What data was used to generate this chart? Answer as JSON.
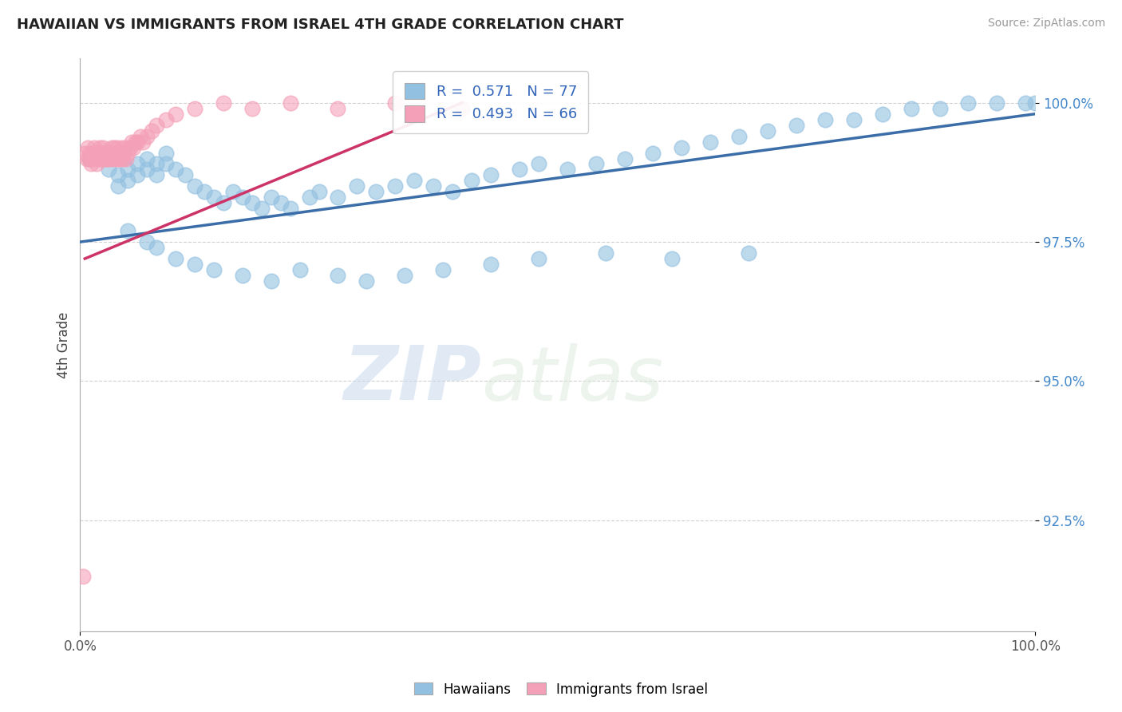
{
  "title": "HAWAIIAN VS IMMIGRANTS FROM ISRAEL 4TH GRADE CORRELATION CHART",
  "source": "Source: ZipAtlas.com",
  "ylabel": "4th Grade",
  "x_min": 0.0,
  "x_max": 1.0,
  "y_min": 0.905,
  "y_max": 1.008,
  "y_ticks": [
    0.925,
    0.95,
    0.975,
    1.0
  ],
  "y_tick_labels": [
    "92.5%",
    "95.0%",
    "97.5%",
    "100.0%"
  ],
  "blue_color": "#92C0E0",
  "pink_color": "#F4A0B8",
  "blue_line_color": "#3B6EA8",
  "pink_line_color": "#CC3366",
  "legend_R_blue": "0.571",
  "legend_N_blue": "77",
  "legend_R_pink": "0.493",
  "legend_N_pink": "66",
  "watermark_zip": "ZIP",
  "watermark_atlas": "atlas",
  "blue_scatter_x": [
    0.01,
    0.02,
    0.03,
    0.04,
    0.04,
    0.05,
    0.05,
    0.06,
    0.06,
    0.07,
    0.07,
    0.08,
    0.08,
    0.09,
    0.09,
    0.1,
    0.11,
    0.12,
    0.13,
    0.14,
    0.15,
    0.16,
    0.17,
    0.18,
    0.19,
    0.2,
    0.21,
    0.22,
    0.24,
    0.25,
    0.27,
    0.29,
    0.31,
    0.33,
    0.35,
    0.37,
    0.39,
    0.41,
    0.43,
    0.46,
    0.48,
    0.51,
    0.54,
    0.57,
    0.6,
    0.63,
    0.66,
    0.69,
    0.72,
    0.75,
    0.78,
    0.81,
    0.84,
    0.87,
    0.9,
    0.93,
    0.96,
    0.99,
    1.0,
    0.05,
    0.07,
    0.08,
    0.1,
    0.12,
    0.14,
    0.17,
    0.2,
    0.23,
    0.27,
    0.3,
    0.34,
    0.38,
    0.43,
    0.48,
    0.55,
    0.62,
    0.7
  ],
  "blue_scatter_y": [
    0.99,
    0.991,
    0.988,
    0.987,
    0.985,
    0.986,
    0.988,
    0.989,
    0.987,
    0.99,
    0.988,
    0.989,
    0.987,
    0.991,
    0.989,
    0.988,
    0.987,
    0.985,
    0.984,
    0.983,
    0.982,
    0.984,
    0.983,
    0.982,
    0.981,
    0.983,
    0.982,
    0.981,
    0.983,
    0.984,
    0.983,
    0.985,
    0.984,
    0.985,
    0.986,
    0.985,
    0.984,
    0.986,
    0.987,
    0.988,
    0.989,
    0.988,
    0.989,
    0.99,
    0.991,
    0.992,
    0.993,
    0.994,
    0.995,
    0.996,
    0.997,
    0.997,
    0.998,
    0.999,
    0.999,
    1.0,
    1.0,
    1.0,
    1.0,
    0.977,
    0.975,
    0.974,
    0.972,
    0.971,
    0.97,
    0.969,
    0.968,
    0.97,
    0.969,
    0.968,
    0.969,
    0.97,
    0.971,
    0.972,
    0.973,
    0.972,
    0.973
  ],
  "pink_scatter_x": [
    0.005,
    0.007,
    0.008,
    0.01,
    0.01,
    0.011,
    0.012,
    0.013,
    0.014,
    0.015,
    0.016,
    0.016,
    0.017,
    0.018,
    0.019,
    0.02,
    0.021,
    0.022,
    0.023,
    0.024,
    0.025,
    0.025,
    0.026,
    0.027,
    0.028,
    0.029,
    0.03,
    0.031,
    0.032,
    0.033,
    0.034,
    0.035,
    0.036,
    0.037,
    0.038,
    0.039,
    0.04,
    0.041,
    0.042,
    0.043,
    0.044,
    0.045,
    0.046,
    0.047,
    0.048,
    0.05,
    0.052,
    0.054,
    0.056,
    0.058,
    0.06,
    0.063,
    0.066,
    0.07,
    0.075,
    0.08,
    0.09,
    0.1,
    0.12,
    0.15,
    0.18,
    0.22,
    0.27,
    0.33,
    0.4,
    0.003
  ],
  "pink_scatter_y": [
    0.991,
    0.99,
    0.992,
    0.991,
    0.99,
    0.989,
    0.991,
    0.99,
    0.991,
    0.992,
    0.99,
    0.991,
    0.989,
    0.99,
    0.991,
    0.99,
    0.992,
    0.991,
    0.99,
    0.992,
    0.991,
    0.99,
    0.991,
    0.99,
    0.991,
    0.99,
    0.991,
    0.99,
    0.991,
    0.992,
    0.99,
    0.991,
    0.992,
    0.99,
    0.991,
    0.992,
    0.99,
    0.991,
    0.99,
    0.991,
    0.992,
    0.99,
    0.991,
    0.992,
    0.99,
    0.991,
    0.992,
    0.993,
    0.992,
    0.993,
    0.993,
    0.994,
    0.993,
    0.994,
    0.995,
    0.996,
    0.997,
    0.998,
    0.999,
    1.0,
    0.999,
    1.0,
    0.999,
    1.0,
    0.999,
    0.915
  ],
  "blue_trend_x0": 0.0,
  "blue_trend_x1": 1.0,
  "blue_trend_y0": 0.975,
  "blue_trend_y1": 0.998,
  "pink_trend_x0": 0.005,
  "pink_trend_x1": 0.4,
  "pink_trend_y0": 0.972,
  "pink_trend_y1": 1.0
}
